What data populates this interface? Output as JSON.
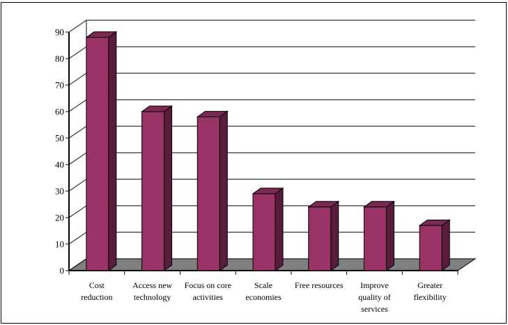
{
  "chart_data": {
    "type": "bar",
    "style": "3d-column",
    "categories": [
      [
        "Cost",
        "reduction"
      ],
      [
        "Access new",
        "technology"
      ],
      [
        "Focus on core",
        "activities"
      ],
      [
        "Scale",
        "economies"
      ],
      [
        "Free resources"
      ],
      [
        "Improve",
        "quality of",
        "services"
      ],
      [
        "Greater",
        "flexibility"
      ]
    ],
    "values": [
      88,
      60,
      58,
      29,
      24,
      24,
      17
    ],
    "ylim": [
      0,
      90
    ],
    "yticks": [
      0,
      10,
      20,
      30,
      40,
      50,
      60,
      70,
      80,
      90
    ],
    "title": "",
    "xlabel": "",
    "ylabel": "",
    "grid": true,
    "legend": "none",
    "colors": {
      "bar_front": "#993366",
      "bar_side": "#5a1c3b",
      "bar_top": "#7a2a52",
      "floor": "#808080",
      "grid": "#000000"
    }
  }
}
